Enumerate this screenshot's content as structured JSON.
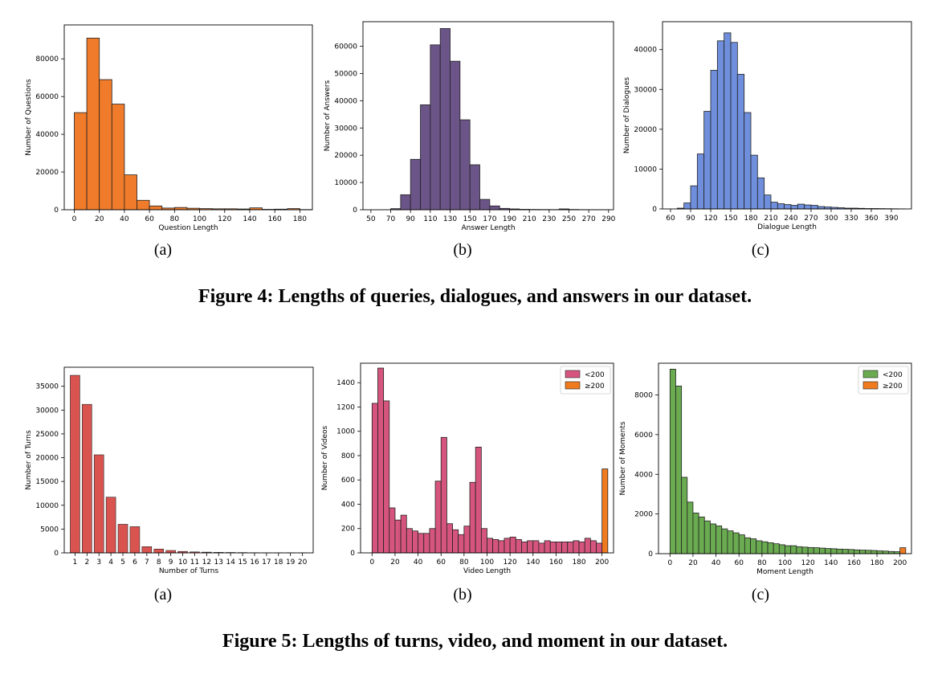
{
  "figure4": {
    "caption": "Figure 4: Lengths of queries, dialogues, and answers in our dataset.",
    "sublabels": [
      "(a)",
      "(b)",
      "(c)"
    ]
  },
  "figure5": {
    "caption": "Figure 5: Lengths of turns, video, and moment in our dataset.",
    "sublabels": [
      "(a)",
      "(b)",
      "(c)"
    ]
  },
  "chart_data": [
    {
      "id": "questions",
      "type": "bar",
      "color": "#f07b2a",
      "xlabel": "Question Length",
      "ylabel": "Number of Questions",
      "xlim": [
        -8,
        190
      ],
      "ylim": [
        0,
        98000
      ],
      "xticks": [
        0,
        20,
        40,
        60,
        80,
        100,
        120,
        140,
        160,
        180
      ],
      "yticks": [
        0,
        20000,
        40000,
        60000,
        80000
      ],
      "bin_width": 10,
      "bins_start": [
        0,
        10,
        20,
        30,
        40,
        50,
        60,
        70,
        80,
        90,
        100,
        110,
        120,
        130,
        140,
        150,
        160,
        170,
        180
      ],
      "values": [
        51500,
        91000,
        69000,
        56000,
        18500,
        5000,
        2000,
        900,
        1200,
        800,
        600,
        500,
        500,
        400,
        1000,
        200,
        300,
        600,
        100
      ]
    },
    {
      "id": "answers",
      "type": "bar",
      "color": "#6b5487",
      "xlabel": "Answer Length",
      "ylabel": "Number of Answers",
      "xlim": [
        42,
        295
      ],
      "ylim": [
        0,
        69000
      ],
      "xticks": [
        50,
        70,
        90,
        110,
        130,
        150,
        170,
        190,
        210,
        230,
        250,
        270,
        290
      ],
      "yticks": [
        0,
        10000,
        20000,
        30000,
        40000,
        50000,
        60000
      ],
      "bin_width": 10,
      "bins_start": [
        70,
        80,
        90,
        100,
        110,
        120,
        130,
        140,
        150,
        160,
        170,
        180,
        190,
        200,
        210,
        220,
        230,
        240,
        250,
        260,
        270,
        280
      ],
      "values": [
        400,
        5500,
        18500,
        38500,
        60500,
        66500,
        54500,
        33000,
        16500,
        3800,
        1400,
        500,
        300,
        150,
        100,
        80,
        60,
        300,
        100,
        40,
        20,
        20
      ]
    },
    {
      "id": "dialogues",
      "type": "bar",
      "color": "#6f8fdc",
      "xlabel": "Dialogue Length",
      "ylabel": "Number of Dialogues",
      "xlim": [
        48,
        420
      ],
      "ylim": [
        0,
        47000
      ],
      "xticks": [
        60,
        90,
        120,
        150,
        180,
        210,
        240,
        270,
        300,
        330,
        360,
        390
      ],
      "yticks": [
        0,
        10000,
        20000,
        30000,
        40000
      ],
      "bin_width": 10,
      "bins_start": [
        70,
        80,
        90,
        100,
        110,
        120,
        130,
        140,
        150,
        160,
        170,
        180,
        190,
        200,
        210,
        220,
        230,
        240,
        250,
        260,
        270,
        280,
        290,
        300,
        310,
        320,
        330,
        340,
        350,
        360,
        370,
        380,
        390,
        400
      ],
      "values": [
        200,
        1500,
        5800,
        13800,
        24500,
        34800,
        42200,
        44200,
        41800,
        33800,
        24200,
        13500,
        7800,
        3500,
        1700,
        1300,
        1100,
        900,
        1200,
        1000,
        900,
        600,
        500,
        400,
        300,
        200,
        200,
        150,
        100,
        100,
        80,
        60,
        40,
        20
      ]
    },
    {
      "id": "turns",
      "type": "bar",
      "color": "#d9534f",
      "xlabel": "Number of Turns",
      "ylabel": "Number of Turns",
      "xlim": [
        0.1,
        20.9
      ],
      "ylim": [
        0,
        39000
      ],
      "categories": [
        "1",
        "2",
        "3",
        "4",
        "5",
        "6",
        "7",
        "8",
        "9",
        "10",
        "11",
        "12",
        "13",
        "14",
        "15",
        "16",
        "17",
        "18",
        "19",
        "20"
      ],
      "yticks": [
        0,
        5000,
        10000,
        15000,
        20000,
        25000,
        30000,
        35000
      ],
      "values": [
        37300,
        31200,
        20600,
        11700,
        6000,
        5500,
        1300,
        800,
        500,
        300,
        200,
        150,
        100,
        80,
        60,
        40,
        30,
        20,
        15,
        10
      ]
    },
    {
      "id": "videos",
      "type": "bar",
      "xlabel": "Video Length",
      "ylabel": "Number of Videos",
      "xlim": [
        -10,
        210
      ],
      "ylim": [
        0,
        1560
      ],
      "xticks": [
        0,
        20,
        40,
        60,
        80,
        100,
        120,
        140,
        160,
        180,
        200
      ],
      "yticks": [
        0,
        200,
        400,
        600,
        800,
        1000,
        1200,
        1400
      ],
      "bin_width": 5,
      "legend_position": "top-right",
      "series": [
        {
          "name": "<200",
          "color": "#d6557e",
          "bins_start": [
            0,
            5,
            10,
            15,
            20,
            25,
            30,
            35,
            40,
            45,
            50,
            55,
            60,
            65,
            70,
            75,
            80,
            85,
            90,
            95,
            100,
            105,
            110,
            115,
            120,
            125,
            130,
            135,
            140,
            145,
            150,
            155,
            160,
            165,
            170,
            175,
            180,
            185,
            190,
            195
          ],
          "values": [
            1230,
            1520,
            1250,
            370,
            270,
            310,
            200,
            180,
            160,
            160,
            200,
            590,
            950,
            240,
            190,
            150,
            220,
            580,
            870,
            200,
            120,
            110,
            100,
            120,
            130,
            110,
            90,
            100,
            100,
            80,
            100,
            90,
            90,
            90,
            90,
            100,
            90,
            120,
            100,
            80
          ]
        },
        {
          "name": "≥200",
          "color": "#f07b1f",
          "bins_start": [
            200
          ],
          "values": [
            690
          ]
        }
      ]
    },
    {
      "id": "moments",
      "type": "bar",
      "xlabel": "Moment Length",
      "ylabel": "Number of Moments",
      "xlim": [
        -10,
        210
      ],
      "ylim": [
        0,
        9600
      ],
      "xticks": [
        0,
        20,
        40,
        60,
        80,
        100,
        120,
        140,
        160,
        180,
        200
      ],
      "yticks": [
        0,
        2000,
        4000,
        6000,
        8000
      ],
      "bin_width": 5,
      "legend_position": "top-right",
      "series": [
        {
          "name": "<200",
          "color": "#6aaa50",
          "bins_start": [
            0,
            5,
            10,
            15,
            20,
            25,
            30,
            35,
            40,
            45,
            50,
            55,
            60,
            65,
            70,
            75,
            80,
            85,
            90,
            95,
            100,
            105,
            110,
            115,
            120,
            125,
            130,
            135,
            140,
            145,
            150,
            155,
            160,
            165,
            170,
            175,
            180,
            185,
            190,
            195
          ],
          "values": [
            9300,
            8450,
            3850,
            2600,
            2050,
            1850,
            1650,
            1500,
            1400,
            1250,
            1150,
            1050,
            950,
            800,
            750,
            650,
            600,
            550,
            500,
            450,
            400,
            400,
            350,
            330,
            310,
            300,
            280,
            260,
            250,
            230,
            220,
            210,
            190,
            180,
            170,
            160,
            140,
            130,
            110,
            100
          ]
        },
        {
          "name": "≥200",
          "color": "#f07b1f",
          "bins_start": [
            200
          ],
          "values": [
            300
          ]
        }
      ]
    }
  ]
}
